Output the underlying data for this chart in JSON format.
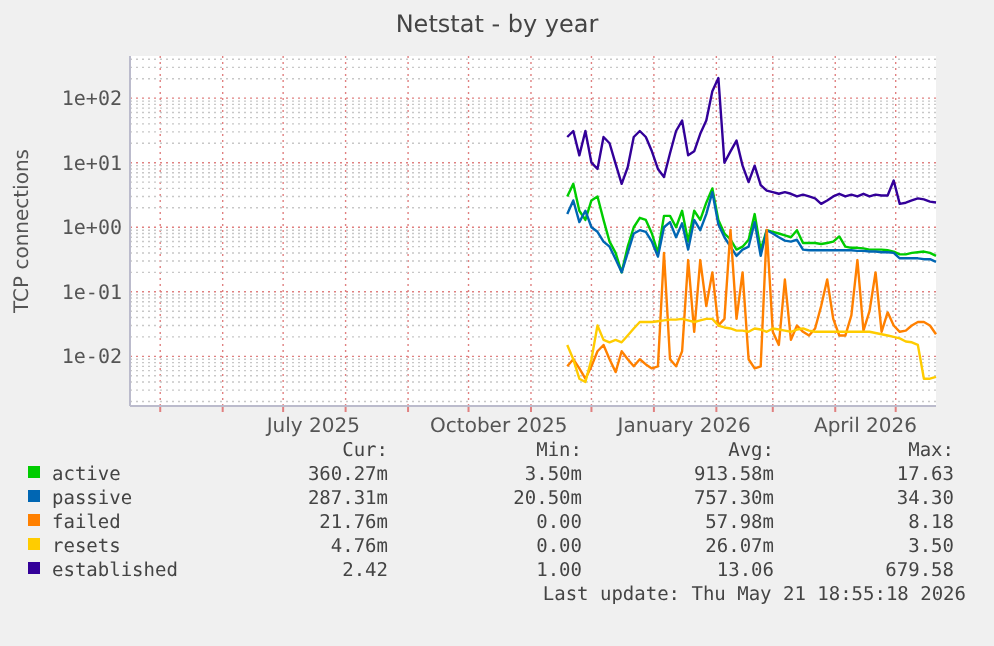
{
  "chart_data": {
    "type": "line",
    "title": "Netstat - by year",
    "ylabel": "TCP connections",
    "log": "y",
    "grid": true,
    "legend": "bottom",
    "marker": "none",
    "line_style": "solid",
    "xlim": [
      "2025-04-16",
      "2026-05-21"
    ],
    "xticks": [
      {
        "value": "2025-05-01",
        "label": null
      },
      {
        "value": "2025-06-01",
        "label": null
      },
      {
        "value": "2025-07-01",
        "label": null
      },
      {
        "value": "2025-07-16",
        "label": "July 2025"
      },
      {
        "value": "2025-08-01",
        "label": null
      },
      {
        "value": "2025-09-01",
        "label": null
      },
      {
        "value": "2025-10-01",
        "label": null
      },
      {
        "value": "2025-10-16",
        "label": "October 2025"
      },
      {
        "value": "2025-11-01",
        "label": null
      },
      {
        "value": "2025-12-01",
        "label": null
      },
      {
        "value": "2026-01-01",
        "label": null
      },
      {
        "value": "2026-01-16",
        "label": "January 2026"
      },
      {
        "value": "2026-02-01",
        "label": null
      },
      {
        "value": "2026-03-01",
        "label": null
      },
      {
        "value": "2026-04-01",
        "label": null
      },
      {
        "value": "2026-04-16",
        "label": "April 2026"
      },
      {
        "value": "2026-05-01",
        "label": null
      }
    ],
    "ylim": [
      0.0017,
      450
    ],
    "yticks": [
      {
        "value": 0.002,
        "label": null
      },
      {
        "value": 0.003,
        "label": null
      },
      {
        "value": 0.004,
        "label": null
      },
      {
        "value": 0.005,
        "label": null
      },
      {
        "value": 0.006,
        "label": null
      },
      {
        "value": 0.007,
        "label": null
      },
      {
        "value": 0.008,
        "label": null
      },
      {
        "value": 0.009,
        "label": null
      },
      {
        "value": 0.01,
        "label": "1e-02"
      },
      {
        "value": 0.02,
        "label": null
      },
      {
        "value": 0.03,
        "label": null
      },
      {
        "value": 0.04,
        "label": null
      },
      {
        "value": 0.05,
        "label": null
      },
      {
        "value": 0.06,
        "label": null
      },
      {
        "value": 0.07,
        "label": null
      },
      {
        "value": 0.08,
        "label": null
      },
      {
        "value": 0.09,
        "label": null
      },
      {
        "value": 0.1,
        "label": "1e-01"
      },
      {
        "value": 0.2,
        "label": null
      },
      {
        "value": 0.3,
        "label": null
      },
      {
        "value": 0.4,
        "label": null
      },
      {
        "value": 0.5,
        "label": null
      },
      {
        "value": 0.6,
        "label": null
      },
      {
        "value": 0.7,
        "label": null
      },
      {
        "value": 0.8,
        "label": null
      },
      {
        "value": 0.9,
        "label": null
      },
      {
        "value": 1,
        "label": "1e+00"
      },
      {
        "value": 2,
        "label": null
      },
      {
        "value": 3,
        "label": null
      },
      {
        "value": 4,
        "label": null
      },
      {
        "value": 5,
        "label": null
      },
      {
        "value": 6,
        "label": null
      },
      {
        "value": 7,
        "label": null
      },
      {
        "value": 8,
        "label": null
      },
      {
        "value": 9,
        "label": null
      },
      {
        "value": 10,
        "label": "1e+01"
      },
      {
        "value": 20,
        "label": null
      },
      {
        "value": 30,
        "label": null
      },
      {
        "value": 40,
        "label": null
      },
      {
        "value": 50,
        "label": null
      },
      {
        "value": 60,
        "label": null
      },
      {
        "value": 70,
        "label": null
      },
      {
        "value": 80,
        "label": null
      },
      {
        "value": 90,
        "label": null
      },
      {
        "value": 100,
        "label": "1e+02"
      },
      {
        "value": 200,
        "label": null
      },
      {
        "value": 300,
        "label": null
      },
      {
        "value": 400,
        "label": null
      }
    ],
    "x": [
      "2025-11-19",
      "2025-11-22",
      "2025-11-25",
      "2025-11-28",
      "2025-12-01",
      "2025-12-04",
      "2025-12-07",
      "2025-12-10",
      "2025-12-13",
      "2025-12-16",
      "2025-12-19",
      "2025-12-22",
      "2025-12-25",
      "2025-12-28",
      "2025-12-31",
      "2026-01-03",
      "2026-01-06",
      "2026-01-09",
      "2026-01-12",
      "2026-01-15",
      "2026-01-18",
      "2026-01-21",
      "2026-01-24",
      "2026-01-27",
      "2026-01-30",
      "2026-02-02",
      "2026-02-05",
      "2026-02-08",
      "2026-02-11",
      "2026-02-14",
      "2026-02-17",
      "2026-02-20",
      "2026-02-23",
      "2026-02-26",
      "2026-03-01",
      "2026-03-04",
      "2026-03-07",
      "2026-03-10",
      "2026-03-13",
      "2026-03-16",
      "2026-03-19",
      "2026-03-22",
      "2026-03-25",
      "2026-03-28",
      "2026-03-31",
      "2026-04-03",
      "2026-04-06",
      "2026-04-09",
      "2026-04-12",
      "2026-04-15",
      "2026-04-18",
      "2026-04-21",
      "2026-04-24",
      "2026-04-27",
      "2026-04-30",
      "2026-05-03",
      "2026-05-06",
      "2026-05-09",
      "2026-05-12",
      "2026-05-15",
      "2026-05-18",
      "2026-05-21"
    ],
    "series": [
      {
        "name": "active",
        "color": "#00cc00",
        "values": [
          3.0,
          4.7,
          1.8,
          1.3,
          2.6,
          3.0,
          1.3,
          0.6,
          0.4,
          0.2,
          0.5,
          1.0,
          1.4,
          1.3,
          0.8,
          0.4,
          1.5,
          1.5,
          1.0,
          1.8,
          0.6,
          1.8,
          1.3,
          2.4,
          4.0,
          1.3,
          0.8,
          0.65,
          0.45,
          0.5,
          0.64,
          1.6,
          0.45,
          0.9,
          0.85,
          0.8,
          0.75,
          0.7,
          0.9,
          0.57,
          0.57,
          0.57,
          0.55,
          0.57,
          0.6,
          0.72,
          0.5,
          0.48,
          0.48,
          0.47,
          0.45,
          0.45,
          0.45,
          0.44,
          0.42,
          0.38,
          0.38,
          0.4,
          0.41,
          0.42,
          0.4,
          0.36
        ]
      },
      {
        "name": "passive",
        "color": "#0066b3",
        "values": [
          1.6,
          2.6,
          1.2,
          1.8,
          1.0,
          0.85,
          0.6,
          0.5,
          0.32,
          0.2,
          0.4,
          0.8,
          0.9,
          0.85,
          0.6,
          0.35,
          1.0,
          1.2,
          0.7,
          1.15,
          0.45,
          1.3,
          0.9,
          1.6,
          3.5,
          1.1,
          0.7,
          0.5,
          0.36,
          0.45,
          0.5,
          1.2,
          0.36,
          0.9,
          0.8,
          0.7,
          0.62,
          0.6,
          0.64,
          0.45,
          0.44,
          0.44,
          0.44,
          0.44,
          0.44,
          0.44,
          0.44,
          0.44,
          0.43,
          0.43,
          0.42,
          0.42,
          0.41,
          0.41,
          0.4,
          0.33,
          0.33,
          0.33,
          0.33,
          0.32,
          0.32,
          0.29
        ]
      },
      {
        "name": "failed",
        "color": "#ff8000",
        "values": [
          0.007,
          0.009,
          0.0065,
          0.0045,
          0.007,
          0.012,
          0.015,
          0.009,
          0.0057,
          0.012,
          0.009,
          0.007,
          0.009,
          0.0075,
          0.0065,
          0.007,
          0.4,
          0.009,
          0.007,
          0.012,
          0.31,
          0.024,
          0.31,
          0.06,
          0.2,
          0.03,
          0.038,
          0.91,
          0.038,
          0.2,
          0.009,
          0.0065,
          0.007,
          0.91,
          0.024,
          0.015,
          0.155,
          0.018,
          0.03,
          0.024,
          0.021,
          0.027,
          0.06,
          0.155,
          0.038,
          0.021,
          0.021,
          0.043,
          0.31,
          0.025,
          0.05,
          0.2,
          0.024,
          0.048,
          0.03,
          0.024,
          0.025,
          0.03,
          0.034,
          0.034,
          0.03,
          0.022
        ]
      },
      {
        "name": "resets",
        "color": "#ffcc00",
        "values": [
          0.015,
          0.009,
          0.0045,
          0.004,
          0.009,
          0.03,
          0.018,
          0.0165,
          0.018,
          0.0165,
          0.021,
          0.027,
          0.034,
          0.034,
          0.034,
          0.035,
          0.036,
          0.037,
          0.037,
          0.038,
          0.036,
          0.034,
          0.036,
          0.038,
          0.038,
          0.03,
          0.028,
          0.027,
          0.025,
          0.025,
          0.024,
          0.027,
          0.026,
          0.024,
          0.027,
          0.026,
          0.025,
          0.024,
          0.026,
          0.027,
          0.025,
          0.024,
          0.024,
          0.024,
          0.024,
          0.024,
          0.024,
          0.024,
          0.024,
          0.024,
          0.024,
          0.023,
          0.022,
          0.021,
          0.02,
          0.019,
          0.017,
          0.0165,
          0.015,
          0.0045,
          0.0045,
          0.0048
        ]
      },
      {
        "name": "established",
        "color": "#330099",
        "values": [
          25,
          31,
          13,
          31,
          10,
          8,
          25,
          20,
          9.6,
          4.7,
          8.5,
          25,
          31,
          25,
          15,
          8,
          6,
          14,
          31,
          45,
          13,
          15,
          28,
          45,
          128,
          205,
          10,
          15,
          22,
          9,
          5,
          9,
          4.5,
          3.7,
          3.5,
          3.3,
          3.5,
          3.3,
          3.0,
          3.2,
          3.0,
          2.8,
          2.3,
          2.6,
          3.0,
          3.3,
          3.0,
          3.2,
          3.0,
          3.3,
          3.0,
          3.2,
          3.1,
          3.1,
          5.3,
          2.3,
          2.4,
          2.6,
          2.8,
          2.7,
          2.5,
          2.42
        ]
      }
    ],
    "annotations": [
      "Cur:",
      "Min:",
      "Avg:",
      "Max:",
      "360.27m",
      "3.50m",
      "913.58m",
      "17.63",
      "287.31m",
      "20.50m",
      "757.30m",
      "34.30",
      "21.76m",
      "0.00",
      "57.98m",
      "8.18",
      "4.76m",
      "0.00",
      "26.07m",
      "3.50",
      "2.42",
      "1.00",
      "13.06",
      "679.58",
      "Last update: Thu May 21 18:55:18 2026"
    ]
  }
}
